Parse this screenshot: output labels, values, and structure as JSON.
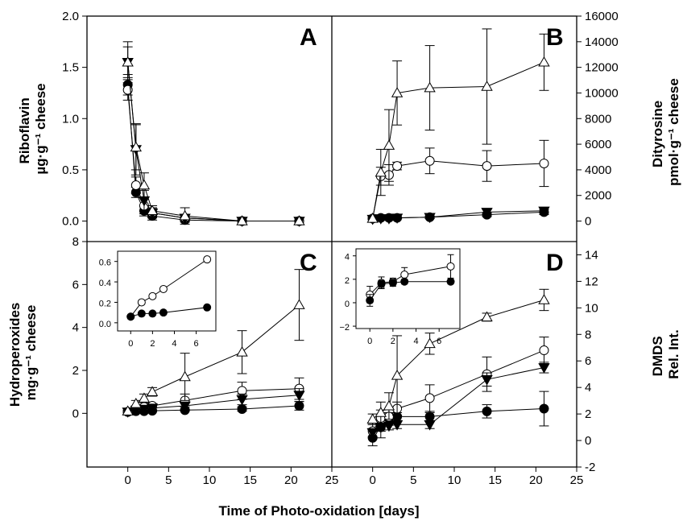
{
  "figure": {
    "xlabel": "Time of Photo-oxidation [days]",
    "left_top_ylabel": [
      "Riboflavin",
      "µg·g⁻¹ cheese"
    ],
    "left_bottom_ylabel": [
      "Hydroperoxides",
      "mg·g⁻¹ cheese"
    ],
    "right_top_ylabel": [
      "Dityrosine",
      "pmol·g⁻¹ cheese"
    ],
    "right_bottom_ylabel": [
      "DMDS",
      "Rel. Int."
    ]
  },
  "chart_data": [
    {
      "panel": "A",
      "type": "line",
      "title": "",
      "xlabel": "Time of Photo-oxidation [days]",
      "ylabel": "Riboflavin µg·g⁻¹ cheese",
      "xlim": [
        -5,
        25
      ],
      "ylim": [
        -0.2,
        2.0
      ],
      "xticks": [
        0,
        5,
        10,
        15,
        20
      ],
      "xtick_labels": [
        "0",
        "5",
        "10",
        "15",
        "20"
      ],
      "yticks": [
        0.0,
        0.5,
        1.0,
        1.5,
        2.0
      ],
      "ytick_labels": [
        "0.0",
        "0.5",
        "1.0",
        "1.5",
        "2.0"
      ],
      "grid": false,
      "series": [
        {
          "marker": "filled-circle",
          "x": [
            0,
            1,
            2,
            3,
            7,
            14,
            21
          ],
          "y": [
            1.33,
            0.28,
            0.1,
            0.05,
            0.01,
            0.0,
            0.0
          ],
          "err": [
            0.1,
            0.05,
            0.05,
            0.04,
            0.02,
            0.01,
            0.01
          ]
        },
        {
          "marker": "open-circle",
          "x": [
            0,
            1,
            2,
            3,
            7,
            14,
            21
          ],
          "y": [
            1.28,
            0.35,
            0.15,
            0.08,
            0.03,
            0.0,
            0.0
          ],
          "err": [
            0.1,
            0.08,
            0.08,
            0.04,
            0.03,
            0.01,
            0.01
          ]
        },
        {
          "marker": "filled-triangle-down",
          "x": [
            0,
            1,
            2,
            3,
            7,
            14,
            21
          ],
          "y": [
            1.55,
            0.7,
            0.2,
            0.08,
            0.03,
            0.0,
            0.0
          ],
          "err": [
            0.15,
            0.25,
            0.1,
            0.05,
            0.03,
            0.01,
            0.01
          ]
        },
        {
          "marker": "open-triangle-up",
          "x": [
            0,
            1,
            2,
            3,
            7,
            14,
            21
          ],
          "y": [
            1.55,
            0.72,
            0.35,
            0.1,
            0.05,
            0.0,
            0.0
          ],
          "err": [
            0.2,
            0.22,
            0.12,
            0.05,
            0.08,
            0.01,
            0.01
          ]
        }
      ]
    },
    {
      "panel": "B",
      "type": "line",
      "title": "",
      "xlabel": "Time of Photo-oxidation [days]",
      "ylabel": "Dityrosine pmol·g⁻¹ cheese",
      "xlim": [
        -5,
        25
      ],
      "ylim": [
        -1600,
        16000
      ],
      "xticks": [
        0,
        5,
        10,
        15,
        20,
        25
      ],
      "xtick_labels": [
        "0",
        "5",
        "10",
        "15",
        "20",
        "25"
      ],
      "yticks": [
        0,
        2000,
        4000,
        6000,
        8000,
        10000,
        12000,
        14000,
        16000
      ],
      "ytick_labels": [
        "0",
        "2000",
        "4000",
        "6000",
        "8000",
        "10000",
        "12000",
        "14000",
        "16000"
      ],
      "grid": false,
      "series": [
        {
          "marker": "filled-circle",
          "x": [
            0,
            1,
            2,
            3,
            7,
            14,
            21
          ],
          "y": [
            200,
            250,
            250,
            250,
            300,
            500,
            700
          ],
          "err": [
            50,
            50,
            50,
            50,
            100,
            150,
            200
          ]
        },
        {
          "marker": "open-circle",
          "x": [
            0,
            1,
            2,
            3,
            7,
            14,
            21
          ],
          "y": [
            200,
            3500,
            3600,
            4300,
            4700,
            4300,
            4500
          ],
          "err": [
            100,
            700,
            800,
            300,
            1000,
            1200,
            1800
          ]
        },
        {
          "marker": "filled-triangle-down",
          "x": [
            0,
            1,
            2,
            3,
            7,
            14,
            21
          ],
          "y": [
            150,
            200,
            200,
            250,
            300,
            700,
            800
          ],
          "err": [
            50,
            50,
            50,
            50,
            100,
            200,
            200
          ]
        },
        {
          "marker": "open-triangle-up",
          "x": [
            0,
            1,
            2,
            3,
            7,
            14,
            21
          ],
          "y": [
            200,
            3800,
            5900,
            10000,
            10400,
            10500,
            12400
          ],
          "err": [
            100,
            1800,
            2800,
            2500,
            3300,
            4500,
            2200
          ]
        }
      ]
    },
    {
      "panel": "C",
      "type": "line",
      "title": "",
      "xlabel": "Time of Photo-oxidation [days]",
      "ylabel": "Hydroperoxides mg·g⁻¹ cheese",
      "xlim": [
        -5,
        25
      ],
      "ylim": [
        -2.5,
        8
      ],
      "xticks": [
        0,
        5,
        10,
        15,
        20,
        25
      ],
      "xtick_labels": [
        "0",
        "5",
        "10",
        "15",
        "20",
        "25"
      ],
      "yticks": [
        0,
        2,
        4,
        6,
        8
      ],
      "ytick_labels": [
        "0",
        "2",
        "4",
        "6",
        "8"
      ],
      "grid": false,
      "series": [
        {
          "marker": "filled-circle",
          "x": [
            0,
            1,
            2,
            3,
            7,
            14,
            21
          ],
          "y": [
            0.07,
            0.1,
            0.1,
            0.12,
            0.15,
            0.2,
            0.35
          ],
          "err": [
            0.03,
            0.03,
            0.03,
            0.03,
            0.05,
            0.1,
            0.2
          ]
        },
        {
          "marker": "open-circle",
          "x": [
            0,
            1,
            2,
            3,
            7,
            14,
            21
          ],
          "y": [
            0.07,
            0.25,
            0.3,
            0.35,
            0.6,
            1.05,
            1.15
          ],
          "err": [
            0.05,
            0.1,
            0.1,
            0.1,
            0.3,
            0.4,
            0.5
          ]
        },
        {
          "marker": "filled-triangle-down",
          "x": [
            0,
            1,
            2,
            3,
            7,
            14,
            21
          ],
          "y": [
            0.07,
            0.15,
            0.2,
            0.25,
            0.35,
            0.65,
            0.85
          ],
          "err": [
            0.05,
            0.1,
            0.1,
            0.1,
            0.15,
            0.25,
            0.3
          ]
        },
        {
          "marker": "open-triangle-up",
          "x": [
            0,
            1,
            2,
            3,
            7,
            14,
            21
          ],
          "y": [
            0.1,
            0.45,
            0.7,
            1.0,
            1.7,
            2.85,
            5.05
          ],
          "err": [
            0.05,
            0.15,
            0.2,
            0.2,
            1.1,
            1.0,
            1.65
          ]
        }
      ],
      "inset": {
        "xlim": [
          -1.2,
          7.8
        ],
        "ylim": [
          -0.08,
          0.7
        ],
        "xticks": [
          0,
          2,
          4,
          6
        ],
        "xtick_labels": [
          "0",
          "2",
          "4",
          "6"
        ],
        "yticks": [
          0.0,
          0.2,
          0.4,
          0.6
        ],
        "ytick_labels": [
          "0.0",
          "0.2",
          "0.4",
          "0.6"
        ],
        "series": [
          {
            "marker": "open-circle",
            "x": [
              0,
              1,
              2,
              3,
              7
            ],
            "y": [
              0.06,
              0.2,
              0.26,
              0.33,
              0.62
            ],
            "err": [
              0.02,
              0.02,
              0.02,
              0.02,
              0.02
            ]
          },
          {
            "marker": "filled-circle",
            "x": [
              0,
              1,
              2,
              3,
              7
            ],
            "y": [
              0.06,
              0.09,
              0.09,
              0.1,
              0.15
            ],
            "err": [
              0.01,
              0.01,
              0.01,
              0.01,
              0.02
            ]
          }
        ]
      }
    },
    {
      "panel": "D",
      "type": "line",
      "title": "",
      "xlabel": "Time of Photo-oxidation [days]",
      "ylabel": "DMDS Rel. Int.",
      "xlim": [
        -5,
        25
      ],
      "ylim": [
        -2,
        15
      ],
      "xticks": [
        0,
        5,
        10,
        15,
        20,
        25
      ],
      "xtick_labels": [
        "0",
        "5",
        "10",
        "15",
        "20",
        "25"
      ],
      "yticks": [
        -2,
        0,
        2,
        4,
        6,
        8,
        10,
        12,
        14
      ],
      "ytick_labels": [
        "-2",
        "0",
        "2",
        "4",
        "6",
        "8",
        "10",
        "12",
        "14"
      ],
      "grid": false,
      "series": [
        {
          "marker": "filled-circle",
          "x": [
            0,
            1,
            2,
            3,
            7,
            14,
            21
          ],
          "y": [
            0.2,
            1.0,
            1.7,
            1.8,
            1.8,
            2.2,
            2.4
          ],
          "err": [
            0.6,
            0.8,
            0.3,
            0.3,
            0.3,
            0.5,
            1.3
          ]
        },
        {
          "marker": "open-circle",
          "x": [
            0,
            1,
            2,
            3,
            7,
            14,
            21
          ],
          "y": [
            0.7,
            1.7,
            1.8,
            2.4,
            3.2,
            5.0,
            6.8
          ],
          "err": [
            0.5,
            0.6,
            0.3,
            0.5,
            1.0,
            1.3,
            1.0
          ]
        },
        {
          "marker": "filled-triangle-down",
          "x": [
            0,
            1,
            2,
            3,
            7,
            14,
            21
          ],
          "y": [
            0.6,
            1.0,
            1.1,
            1.2,
            1.2,
            4.6,
            5.5
          ],
          "err": [
            0.3,
            0.3,
            0.3,
            0.3,
            0.3,
            0.5,
            0.4
          ]
        },
        {
          "marker": "open-triangle-up",
          "x": [
            0,
            1,
            2,
            3,
            7,
            14,
            21
          ],
          "y": [
            1.6,
            2.1,
            2.6,
            4.9,
            7.3,
            9.3,
            10.6
          ],
          "err": [
            0.4,
            0.8,
            1.0,
            3.0,
            0.8,
            0.3,
            0.8
          ]
        }
      ],
      "inset": {
        "xlim": [
          -1.2,
          7.8
        ],
        "ylim": [
          -2.2,
          4.6
        ],
        "xticks": [
          0,
          2,
          4,
          6
        ],
        "xtick_labels": [
          "0",
          "2",
          "4",
          "6"
        ],
        "yticks": [
          -2,
          0,
          2,
          4
        ],
        "ytick_labels": [
          "−2",
          "0",
          "2",
          "4"
        ],
        "series": [
          {
            "marker": "open-circle",
            "x": [
              0,
              1,
              2,
              3,
              7
            ],
            "y": [
              0.7,
              1.7,
              1.8,
              2.4,
              3.1
            ],
            "err": [
              0.7,
              0.5,
              0.3,
              0.6,
              1.0
            ]
          },
          {
            "marker": "filled-circle",
            "x": [
              0,
              1,
              2,
              3,
              7
            ],
            "y": [
              0.2,
              1.6,
              1.7,
              1.8,
              1.8
            ],
            "err": [
              0.5,
              0.3,
              0.3,
              0.2,
              0.2
            ]
          }
        ]
      }
    }
  ]
}
